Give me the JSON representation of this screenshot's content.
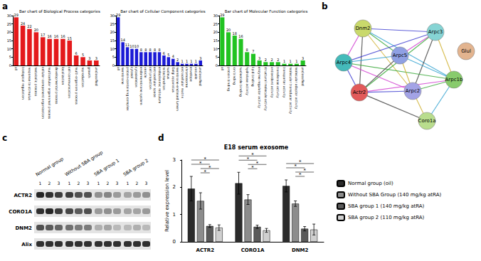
{
  "chart_data": [
    {
      "type": "bar",
      "title": "Bar chart of Biological Process categories",
      "categories": [
        "all",
        "biological regulation",
        "response to stimulus",
        "metabolic process",
        "cellular component organization",
        "multicellular organismal process",
        "developmental process",
        "localization",
        "cell communication",
        "multi-organism process",
        "reproduction",
        "growth",
        "unclassified"
      ],
      "values": [
        29,
        24,
        22,
        20,
        17,
        16,
        16,
        16,
        15,
        6,
        5,
        3,
        3
      ],
      "color": "#e41a1c",
      "ylim": [
        0,
        30
      ],
      "yticks": [
        0,
        5,
        10,
        15,
        20,
        25,
        30
      ],
      "grid": false,
      "data_labels": true
    },
    {
      "type": "bar",
      "title": "Bar chart of Cellular Component categories",
      "categories": [
        "all",
        "membrane",
        "protein-containing complex",
        "cytosol",
        "cytoskeleton",
        "endomembrane system",
        "vesicle",
        "cell projection",
        "extracellular space",
        "endoplasmic reticulum",
        "mitochondrion",
        "nucleus",
        "Golgi apparatus",
        "membrane-enclosed lumen",
        "extracellular matrix",
        "chromosome",
        "envelope",
        "vacuole",
        "unclassified"
      ],
      "values": [
        29,
        14,
        11,
        10,
        10,
        8,
        8,
        8,
        8,
        8,
        6,
        5,
        4,
        2,
        1,
        1,
        1,
        1,
        3
      ],
      "color": "#1a1ad6",
      "ylim": [
        0,
        30
      ],
      "yticks": [
        0,
        5,
        10,
        15,
        20,
        25,
        30
      ],
      "grid": false,
      "data_labels": true
    },
    {
      "type": "bar",
      "title": "Bar chart of Molecular Function categories",
      "categories": [
        "all",
        "protein binding",
        "ion binding",
        "nucleotide binding",
        "hydrolase activity",
        "lipid binding",
        "enzyme regulator activity",
        "structural molecule activity",
        "antioxidant activity",
        "transferase activity",
        "transporter activity",
        "molecular transducer activity",
        "molecular adaptor activity",
        "unclassified"
      ],
      "values": [
        29,
        20,
        18,
        16,
        8,
        7,
        3,
        2,
        2,
        2,
        1,
        1,
        1,
        3
      ],
      "color": "#22c322",
      "ylim": [
        0,
        30
      ],
      "yticks": [
        0,
        5,
        10,
        15,
        20,
        25,
        30
      ],
      "grid": false,
      "data_labels": true
    },
    {
      "type": "bar",
      "title": "E18 serum exosome",
      "ylabel": "Relative expression level",
      "categories": [
        "ACTR2",
        "CORO1A",
        "DNM2"
      ],
      "series": [
        {
          "name": "Normal group (oil)",
          "color": "#2b2b2b",
          "values": [
            1.95,
            2.15,
            2.05
          ],
          "errors": [
            0.45,
            0.4,
            0.22
          ]
        },
        {
          "name": "Without SBA Group (140 mg/kg atRA)",
          "color": "#8c8c8c",
          "values": [
            1.5,
            1.55,
            1.4
          ],
          "errors": [
            0.3,
            0.18,
            0.1
          ]
        },
        {
          "name": "SBA group 1 (140 mg/kg atRA)",
          "color": "#5a5a5a",
          "values": [
            0.58,
            0.55,
            0.48
          ],
          "errors": [
            0.05,
            0.06,
            0.08
          ]
        },
        {
          "name": "SBA group 2 (110 mg/kg atRA)",
          "color": "#d0d0d0",
          "values": [
            0.52,
            0.42,
            0.45
          ],
          "errors": [
            0.1,
            0.07,
            0.2
          ]
        }
      ],
      "ylim": [
        0,
        3
      ],
      "yticks": [
        0,
        1,
        2,
        3
      ],
      "grid": false,
      "data_labels": false,
      "legend": "right",
      "annotations": [
        {
          "text": "*",
          "category": "ACTR2",
          "between": [
            0,
            3
          ]
        },
        {
          "text": "*",
          "category": "ACTR2",
          "between": [
            0,
            2
          ]
        },
        {
          "text": "*",
          "category": "ACTR2",
          "between": [
            1,
            3
          ]
        },
        {
          "text": "*",
          "category": "ACTR2",
          "between": [
            1,
            2
          ]
        },
        {
          "text": "*",
          "category": "CORO1A",
          "between": [
            0,
            3
          ]
        },
        {
          "text": "*",
          "category": "CORO1A",
          "between": [
            0,
            2
          ]
        },
        {
          "text": "*",
          "category": "CORO1A",
          "between": [
            1,
            3
          ]
        },
        {
          "text": "*",
          "category": "CORO1A",
          "between": [
            1,
            2
          ]
        },
        {
          "text": "*",
          "category": "DNM2",
          "between": [
            0,
            3
          ]
        },
        {
          "text": "*",
          "category": "DNM2",
          "between": [
            0,
            2
          ]
        },
        {
          "text": "*",
          "category": "DNM2",
          "between": [
            1,
            3
          ]
        },
        {
          "text": "*",
          "category": "DNM2",
          "between": [
            1,
            2
          ]
        }
      ]
    }
  ],
  "panel_letters": [
    "a",
    "b",
    "c",
    "d"
  ],
  "network": {
    "nodes": [
      {
        "label": "Dnm2",
        "color": "#c9d96b"
      },
      {
        "label": "Arpc3",
        "color": "#86d4d4"
      },
      {
        "label": "Glul",
        "color": "#e3b48f"
      },
      {
        "label": "Arpc4",
        "color": "#45baba"
      },
      {
        "label": "Arpc5",
        "color": "#8fa0e3"
      },
      {
        "label": "Actr2",
        "color": "#e25a5a"
      },
      {
        "label": "Arpc2",
        "color": "#a3a3e6"
      },
      {
        "label": "Arpc1b",
        "color": "#88cb6c"
      },
      {
        "label": "Coro1a",
        "color": "#b9dd8d"
      }
    ],
    "edges": [
      [
        "Dnm2",
        "Arpc3"
      ],
      [
        "Dnm2",
        "Arpc4"
      ],
      [
        "Dnm2",
        "Arpc5"
      ],
      [
        "Dnm2",
        "Actr2"
      ],
      [
        "Dnm2",
        "Arpc2"
      ],
      [
        "Dnm2",
        "Arpc1b"
      ],
      [
        "Arpc3",
        "Arpc4"
      ],
      [
        "Arpc3",
        "Arpc5"
      ],
      [
        "Arpc3",
        "Actr2"
      ],
      [
        "Arpc3",
        "Arpc2"
      ],
      [
        "Arpc3",
        "Arpc1b"
      ],
      [
        "Arpc4",
        "Arpc5"
      ],
      [
        "Arpc4",
        "Actr2"
      ],
      [
        "Arpc4",
        "Arpc2"
      ],
      [
        "Arpc4",
        "Arpc1b"
      ],
      [
        "Arpc5",
        "Actr2"
      ],
      [
        "Arpc5",
        "Arpc2"
      ],
      [
        "Arpc5",
        "Arpc1b"
      ],
      [
        "Actr2",
        "Arpc2"
      ],
      [
        "Actr2",
        "Arpc1b"
      ],
      [
        "Arpc2",
        "Arpc1b"
      ],
      [
        "Coro1a",
        "Actr2"
      ],
      [
        "Coro1a",
        "Arpc2"
      ],
      [
        "Coro1a",
        "Arpc1b"
      ]
    ]
  },
  "blot": {
    "groups": [
      "Normal group",
      "Without SBA group",
      "SBA group 1",
      "SBA group 2"
    ],
    "lanes": [
      "1",
      "2",
      "3"
    ],
    "rows": [
      {
        "label": "ACTR2",
        "intensity": [
          0.9,
          0.85,
          0.8,
          0.8,
          0.7,
          0.7,
          0.4,
          0.45,
          0.35,
          0.3,
          0.35,
          0.4
        ]
      },
      {
        "label": "CORO1A",
        "intensity": [
          0.85,
          0.9,
          0.8,
          0.75,
          0.65,
          0.7,
          0.35,
          0.4,
          0.35,
          0.3,
          0.3,
          0.35
        ]
      },
      {
        "label": "DNM2",
        "intensity": [
          0.7,
          0.65,
          0.6,
          0.55,
          0.5,
          0.5,
          0.25,
          0.3,
          0.2,
          0.2,
          0.25,
          0.2
        ]
      },
      {
        "label": "Alix",
        "intensity": [
          0.85,
          0.85,
          0.85,
          0.85,
          0.85,
          0.85,
          0.85,
          0.85,
          0.85,
          0.85,
          0.85,
          0.85
        ]
      }
    ]
  }
}
